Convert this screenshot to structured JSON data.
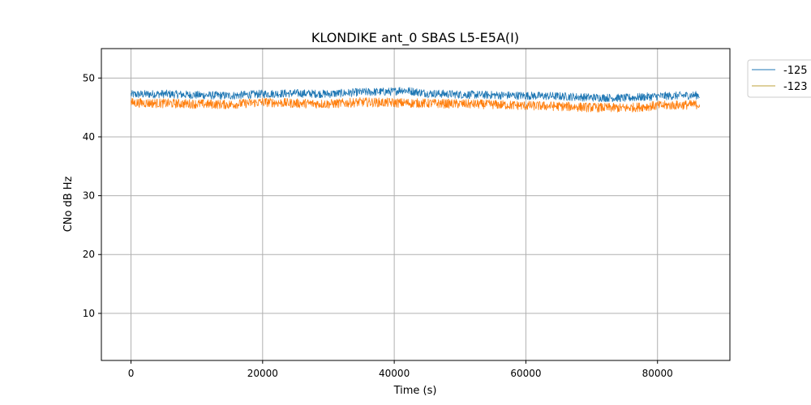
{
  "chart_data": {
    "type": "line",
    "title": "KLONDIKE ant_0 SBAS L5-E5A(I)",
    "xlabel": "Time (s)",
    "ylabel": "CNo dB Hz",
    "xlim": [
      -4500,
      91000
    ],
    "ylim": [
      2,
      55
    ],
    "xticks": [
      0,
      20000,
      40000,
      60000,
      80000
    ],
    "yticks": [
      10,
      20,
      30,
      40,
      50
    ],
    "grid": true,
    "legend_position": "outside-top-right",
    "series": [
      {
        "name": "-125",
        "color": "#1f77b4",
        "x": [
          0,
          5000,
          10000,
          15000,
          20000,
          25000,
          30000,
          35000,
          40000,
          41000,
          45000,
          50000,
          55000,
          60000,
          65000,
          70000,
          75000,
          80000,
          86400
        ],
        "y": [
          47.2,
          47.3,
          47.1,
          47.0,
          47.3,
          47.4,
          47.3,
          47.6,
          47.7,
          48.0,
          47.4,
          47.2,
          47.1,
          47.0,
          46.9,
          46.7,
          46.6,
          46.9,
          47.1
        ],
        "band": 0.7
      },
      {
        "name": "-123",
        "color": "#ff7f0e",
        "legend_color": "#bca23a",
        "x": [
          0,
          5000,
          10000,
          15000,
          20000,
          25000,
          30000,
          35000,
          40000,
          45000,
          50000,
          55000,
          60000,
          65000,
          70000,
          75000,
          80000,
          86400
        ],
        "y": [
          45.8,
          45.7,
          45.6,
          45.5,
          45.9,
          45.7,
          45.6,
          45.9,
          45.8,
          45.7,
          45.6,
          45.5,
          45.3,
          45.2,
          45.0,
          44.9,
          45.3,
          45.5
        ],
        "band": 0.8
      }
    ]
  }
}
